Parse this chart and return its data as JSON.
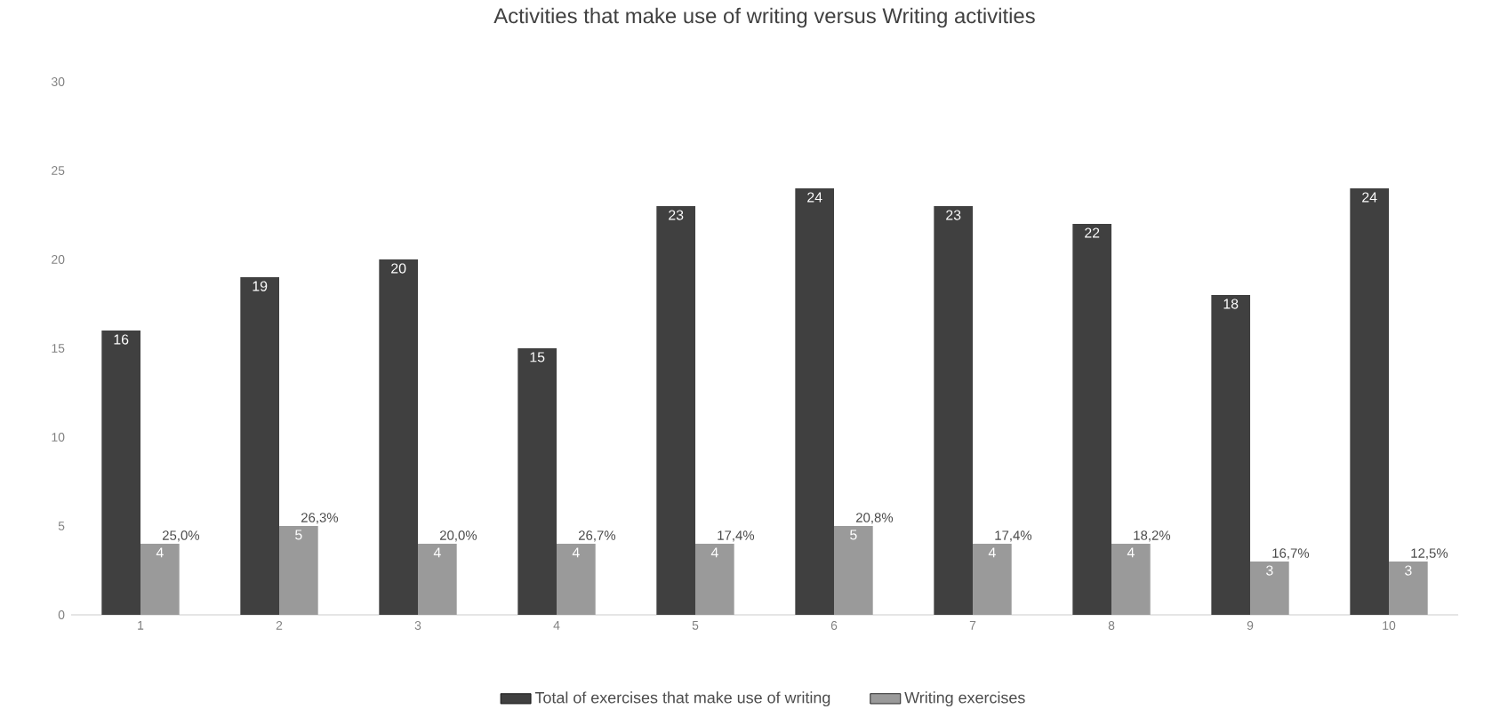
{
  "chart_data": {
    "type": "bar",
    "title": "Activities that make use of writing versus Writing activities",
    "categories": [
      "1",
      "2",
      "3",
      "4",
      "5",
      "6",
      "7",
      "8",
      "9",
      "10"
    ],
    "series": [
      {
        "name": "Total of exercises that make use of writing",
        "color": "#404040",
        "values": [
          16,
          19,
          20,
          15,
          23,
          24,
          23,
          22,
          18,
          24
        ]
      },
      {
        "name": "Writing exercises",
        "color": "#9a9a9a",
        "values": [
          4,
          5,
          4,
          4,
          4,
          5,
          4,
          4,
          3,
          3
        ]
      }
    ],
    "ylim": [
      0,
      30
    ],
    "yticks": [
      0,
      5,
      10,
      15,
      20,
      25,
      30
    ],
    "grid": false,
    "legend": "bottom",
    "data_labels": true,
    "annotations": [
      {
        "text": "25,0%",
        "x": "1",
        "y": 4
      },
      {
        "text": "26,3%",
        "x": "2",
        "y": 5
      },
      {
        "text": "20,0%",
        "x": "3",
        "y": 4
      },
      {
        "text": "26,7%",
        "x": "4",
        "y": 4
      },
      {
        "text": "17,4%",
        "x": "5",
        "y": 4
      },
      {
        "text": "20,8%",
        "x": "6",
        "y": 5
      },
      {
        "text": "17,4%",
        "x": "7",
        "y": 4
      },
      {
        "text": "18,2%",
        "x": "8",
        "y": 4
      },
      {
        "text": "16,7%",
        "x": "9",
        "y": 3
      },
      {
        "text": "12,5%",
        "x": "10",
        "y": 3
      }
    ]
  }
}
